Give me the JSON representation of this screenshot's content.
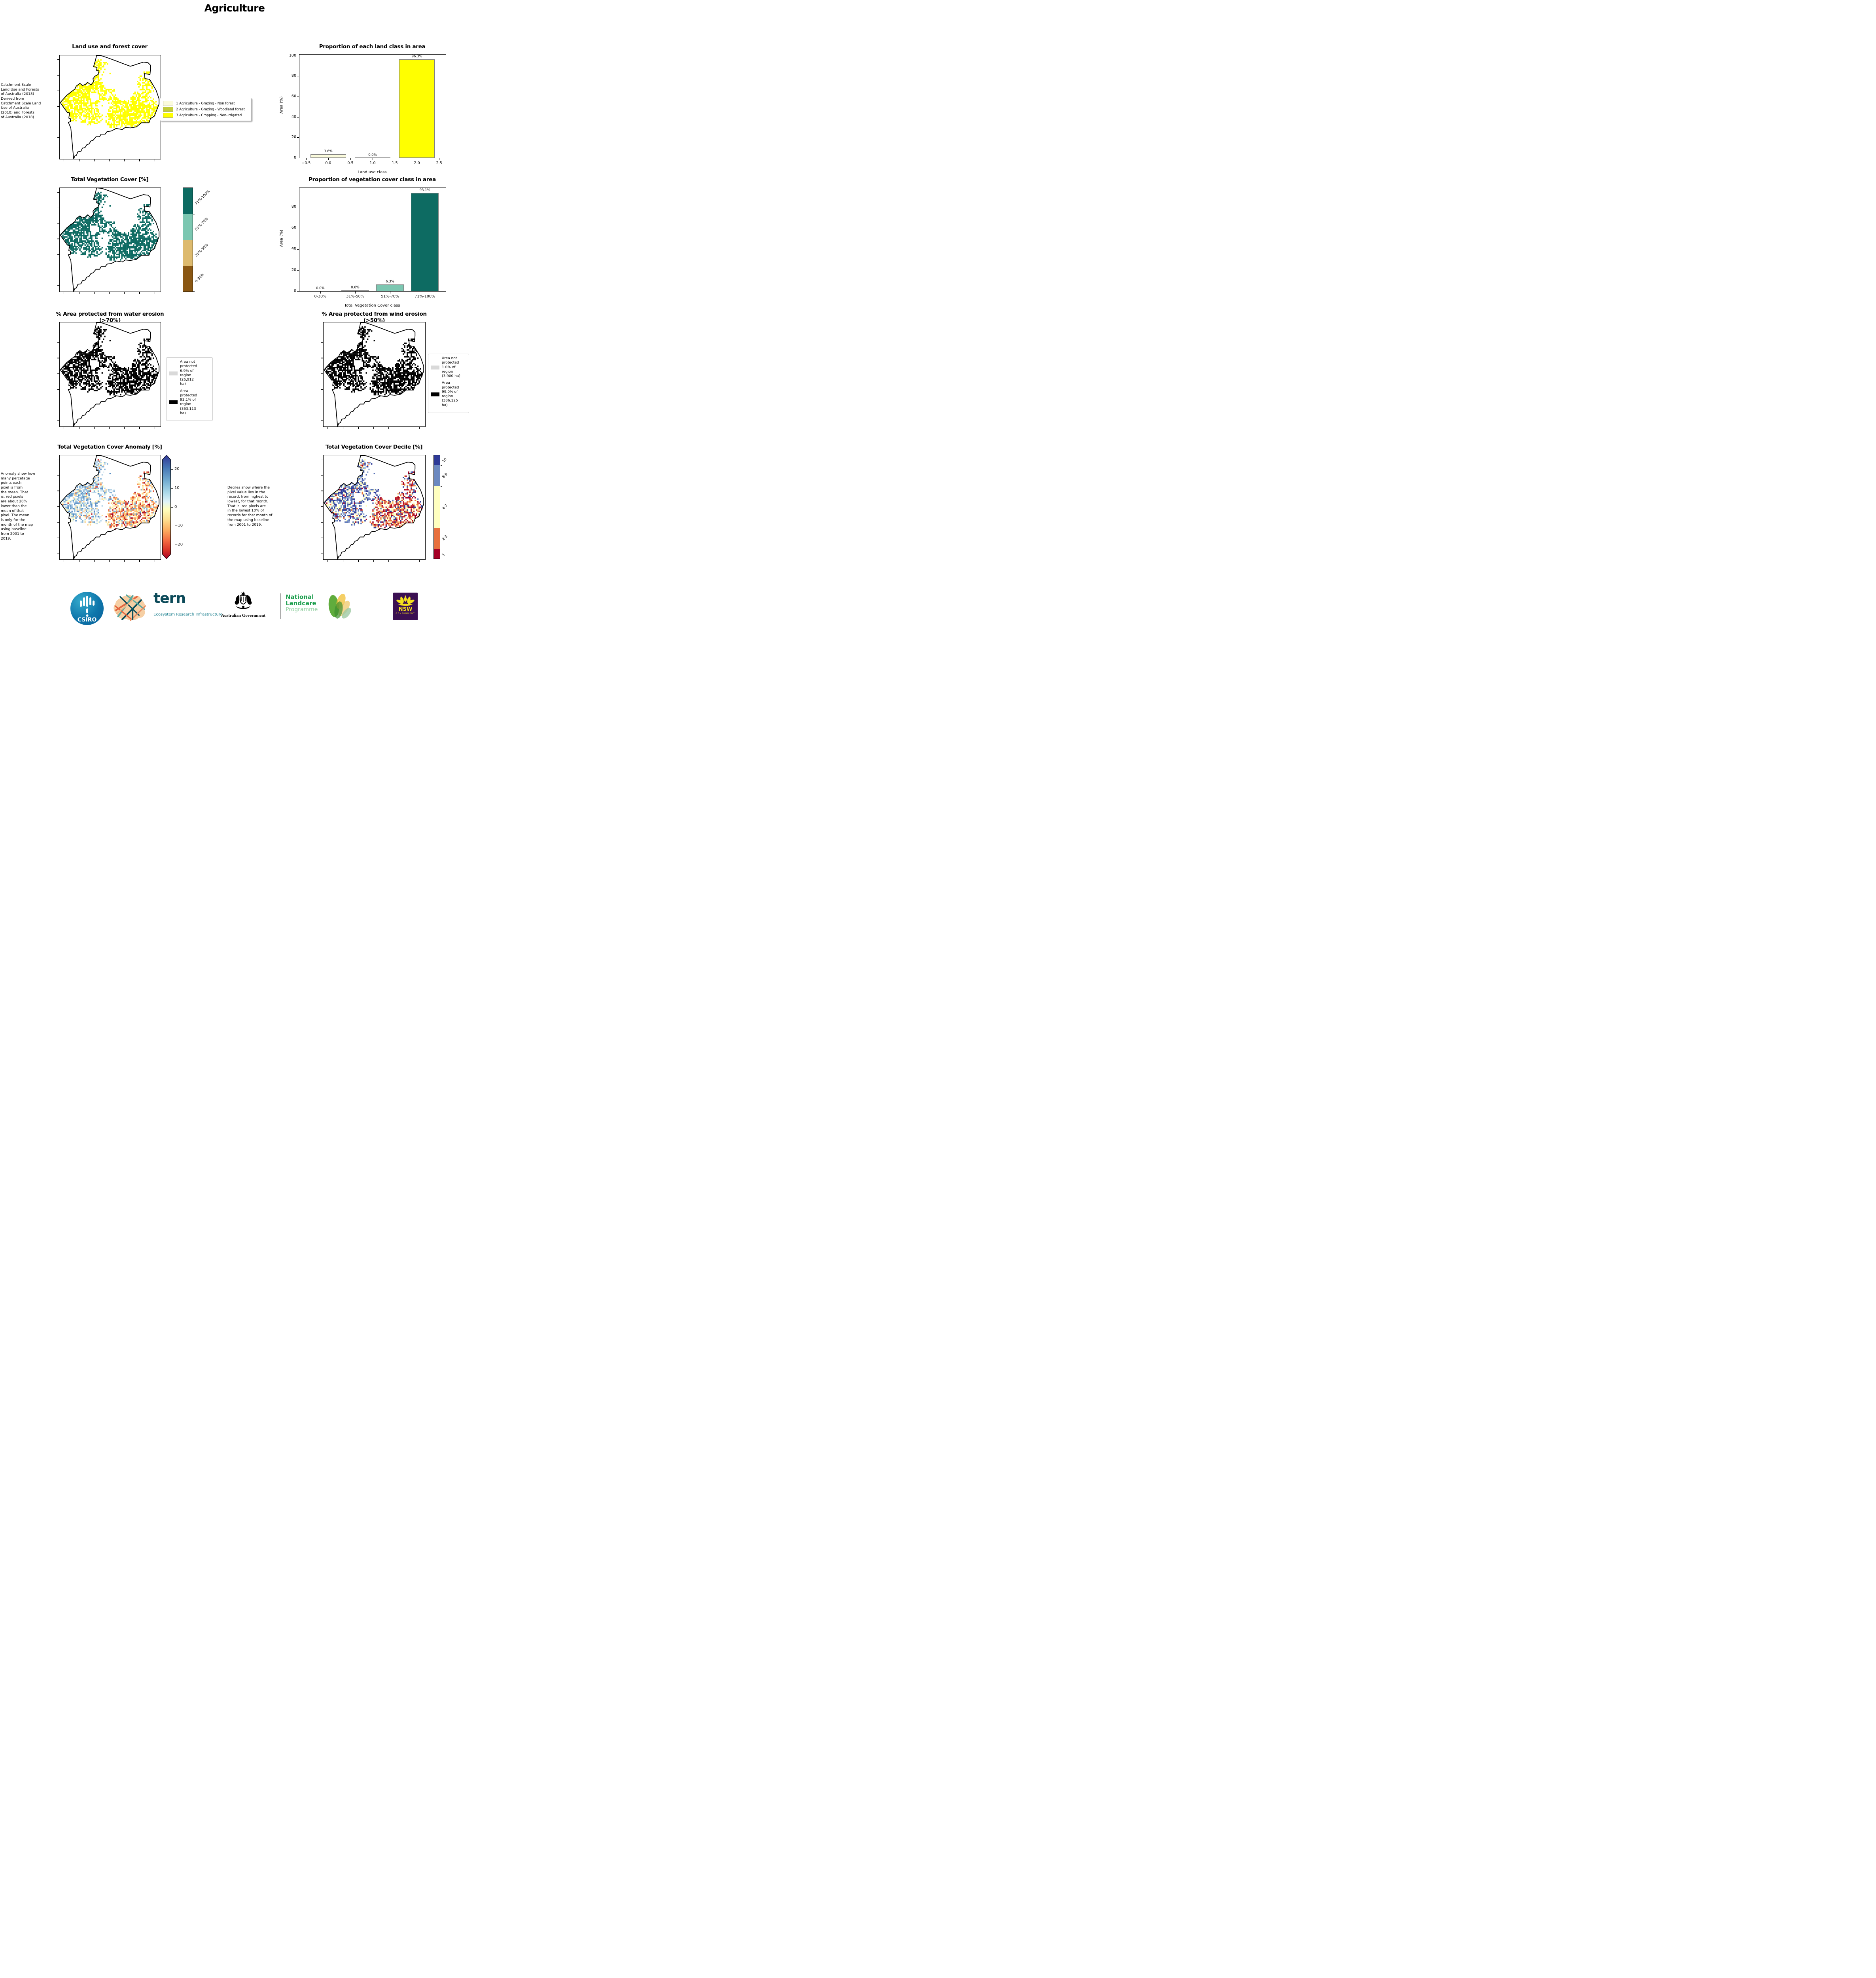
{
  "page": {
    "title": "Agriculture"
  },
  "panels": {
    "land_use": {
      "title": "Land use and forest cover",
      "note": " Catchment Scale\nLand Use and Forests\nof Australia (2018)\nDerived from\nCatchment Scale Land\nUse of Australia\n(2018) and Forests\nof Australia (2018)",
      "legend": [
        {
          "label": "1 Agriculture - Grazing - Non forest",
          "color": "#fbfbdc"
        },
        {
          "label": "2 Agriculture - Grazing - Woodland forest",
          "color": "#c2cc3a"
        },
        {
          "label": "3 Agriculture - Cropping - Non-irrigated",
          "color": "#ffff00"
        }
      ]
    },
    "veg_cover": {
      "title": "Total Vegetation Cover [%]",
      "colorbar": {
        "labels": [
          "71%-100%",
          "51%-70%",
          "31%-50%",
          "0-30%"
        ],
        "colors": [
          "#0d6b62",
          "#7cc7b1",
          "#ddba6e",
          "#8a5713"
        ]
      }
    },
    "water_erosion": {
      "title": "% Area protected from water erosion (>70%)",
      "legend": [
        {
          "label": "Area not\nprotected\n6.9% of\nregion\n(26,912\nha)",
          "color": "#d9d9d9"
        },
        {
          "label": "Area\nprotected\n93.1% of\nregion\n(363,113\nha)",
          "color": "#000000"
        }
      ]
    },
    "wind_erosion": {
      "title": "% Area protected from wind erosion (>50%)",
      "legend": [
        {
          "label": "Area not\nprotected\n1.0% of\nregion\n(3,900 ha)",
          "color": "#d9d9d9"
        },
        {
          "label": "Area\nprotected\n99.0% of\nregion\n(386,125\nha)",
          "color": "#000000"
        }
      ]
    },
    "anomaly": {
      "title": "Total Vegetation Cover Anomaly [%]",
      "note": "Anomaly show how\nmany percetage\npoints each\npixel is from\nthe mean. That\nis, red pixels\nare about 20%\nlower than the\nmean of that\npixel. The mean\nis only for the\nmonth of the map\nusing baseline\nfrom 2001 to\n2019.",
      "colorbar_ticks": [
        "20",
        "10",
        "0",
        "−10",
        "−20"
      ],
      "colorbar_colors": [
        "#313695",
        "#74add1",
        "#ffffbf",
        "#f46d43",
        "#a50026"
      ]
    },
    "decile": {
      "title": "Total Vegetation Cover Decile [%]",
      "note": "Deciles show where the\npixel value lies in the\nrecord, from highest to\nlowest, for that month.\nThat is, red pixels are\nin the lowest 10% of\nrecords for that month of\nthe map using baseline\nfrom 2001 to 2019.",
      "colorbar": {
        "labels": [
          "10",
          "8-9",
          "4-7",
          "2-3",
          "1"
        ],
        "colors": [
          "#2e3a97",
          "#6c89c0",
          "#ffffbf",
          "#e8703e",
          "#a50026"
        ],
        "heights_pct": [
          10,
          20,
          40,
          20,
          10
        ]
      }
    }
  },
  "chart_data": [
    {
      "type": "bar",
      "title": "Proportion of each land class in area",
      "xlabel": "Land use class",
      "ylabel": "Area (%)",
      "x": [
        0,
        1,
        2
      ],
      "values": [
        3.6,
        0.0,
        96.3
      ],
      "bar_labels": [
        "3.6%",
        "0.0%",
        "96.3%"
      ],
      "bar_colors": [
        "#fbfbdc",
        "#c2cc3a",
        "#ffff00"
      ],
      "xtick_labels": [
        "−0.5",
        "0.0",
        "0.5",
        "1.0",
        "1.5",
        "2.0",
        "2.5"
      ],
      "xticks": [
        -0.5,
        0.0,
        0.5,
        1.0,
        1.5,
        2.0,
        2.5
      ],
      "yticks": [
        0,
        20,
        40,
        60,
        80,
        100
      ],
      "ylim": [
        0,
        101
      ],
      "legend_position": "none",
      "grid": false
    },
    {
      "type": "bar",
      "title": "Proportion of vegetation cover class in area",
      "xlabel": "Total Vegetation Cover class",
      "ylabel": "Area (%)",
      "categories": [
        "0-30%",
        "31%-50%",
        "51%-70%",
        "71%-100%"
      ],
      "values": [
        0.0,
        0.6,
        6.3,
        93.1
      ],
      "bar_labels": [
        "0.0%",
        "0.6%",
        "6.3%",
        "93.1%"
      ],
      "bar_colors": [
        "#8a5713",
        "#ddba6e",
        "#7cc7b1",
        "#0d6b62"
      ],
      "yticks": [
        0,
        20,
        40,
        60,
        80
      ],
      "ylim": [
        0,
        98
      ],
      "legend_position": "none",
      "grid": false
    }
  ],
  "footer": {
    "csiro": "CSIRO",
    "tern": "tern",
    "tern_sub": "Ecosystem Research Infrastructure",
    "ausgov": "Australian Government",
    "nl1": "National",
    "nl2": "Landcare",
    "nl3": "Programme",
    "nsw": "NSW",
    "nsw_sub": "GOVERNMENT"
  }
}
